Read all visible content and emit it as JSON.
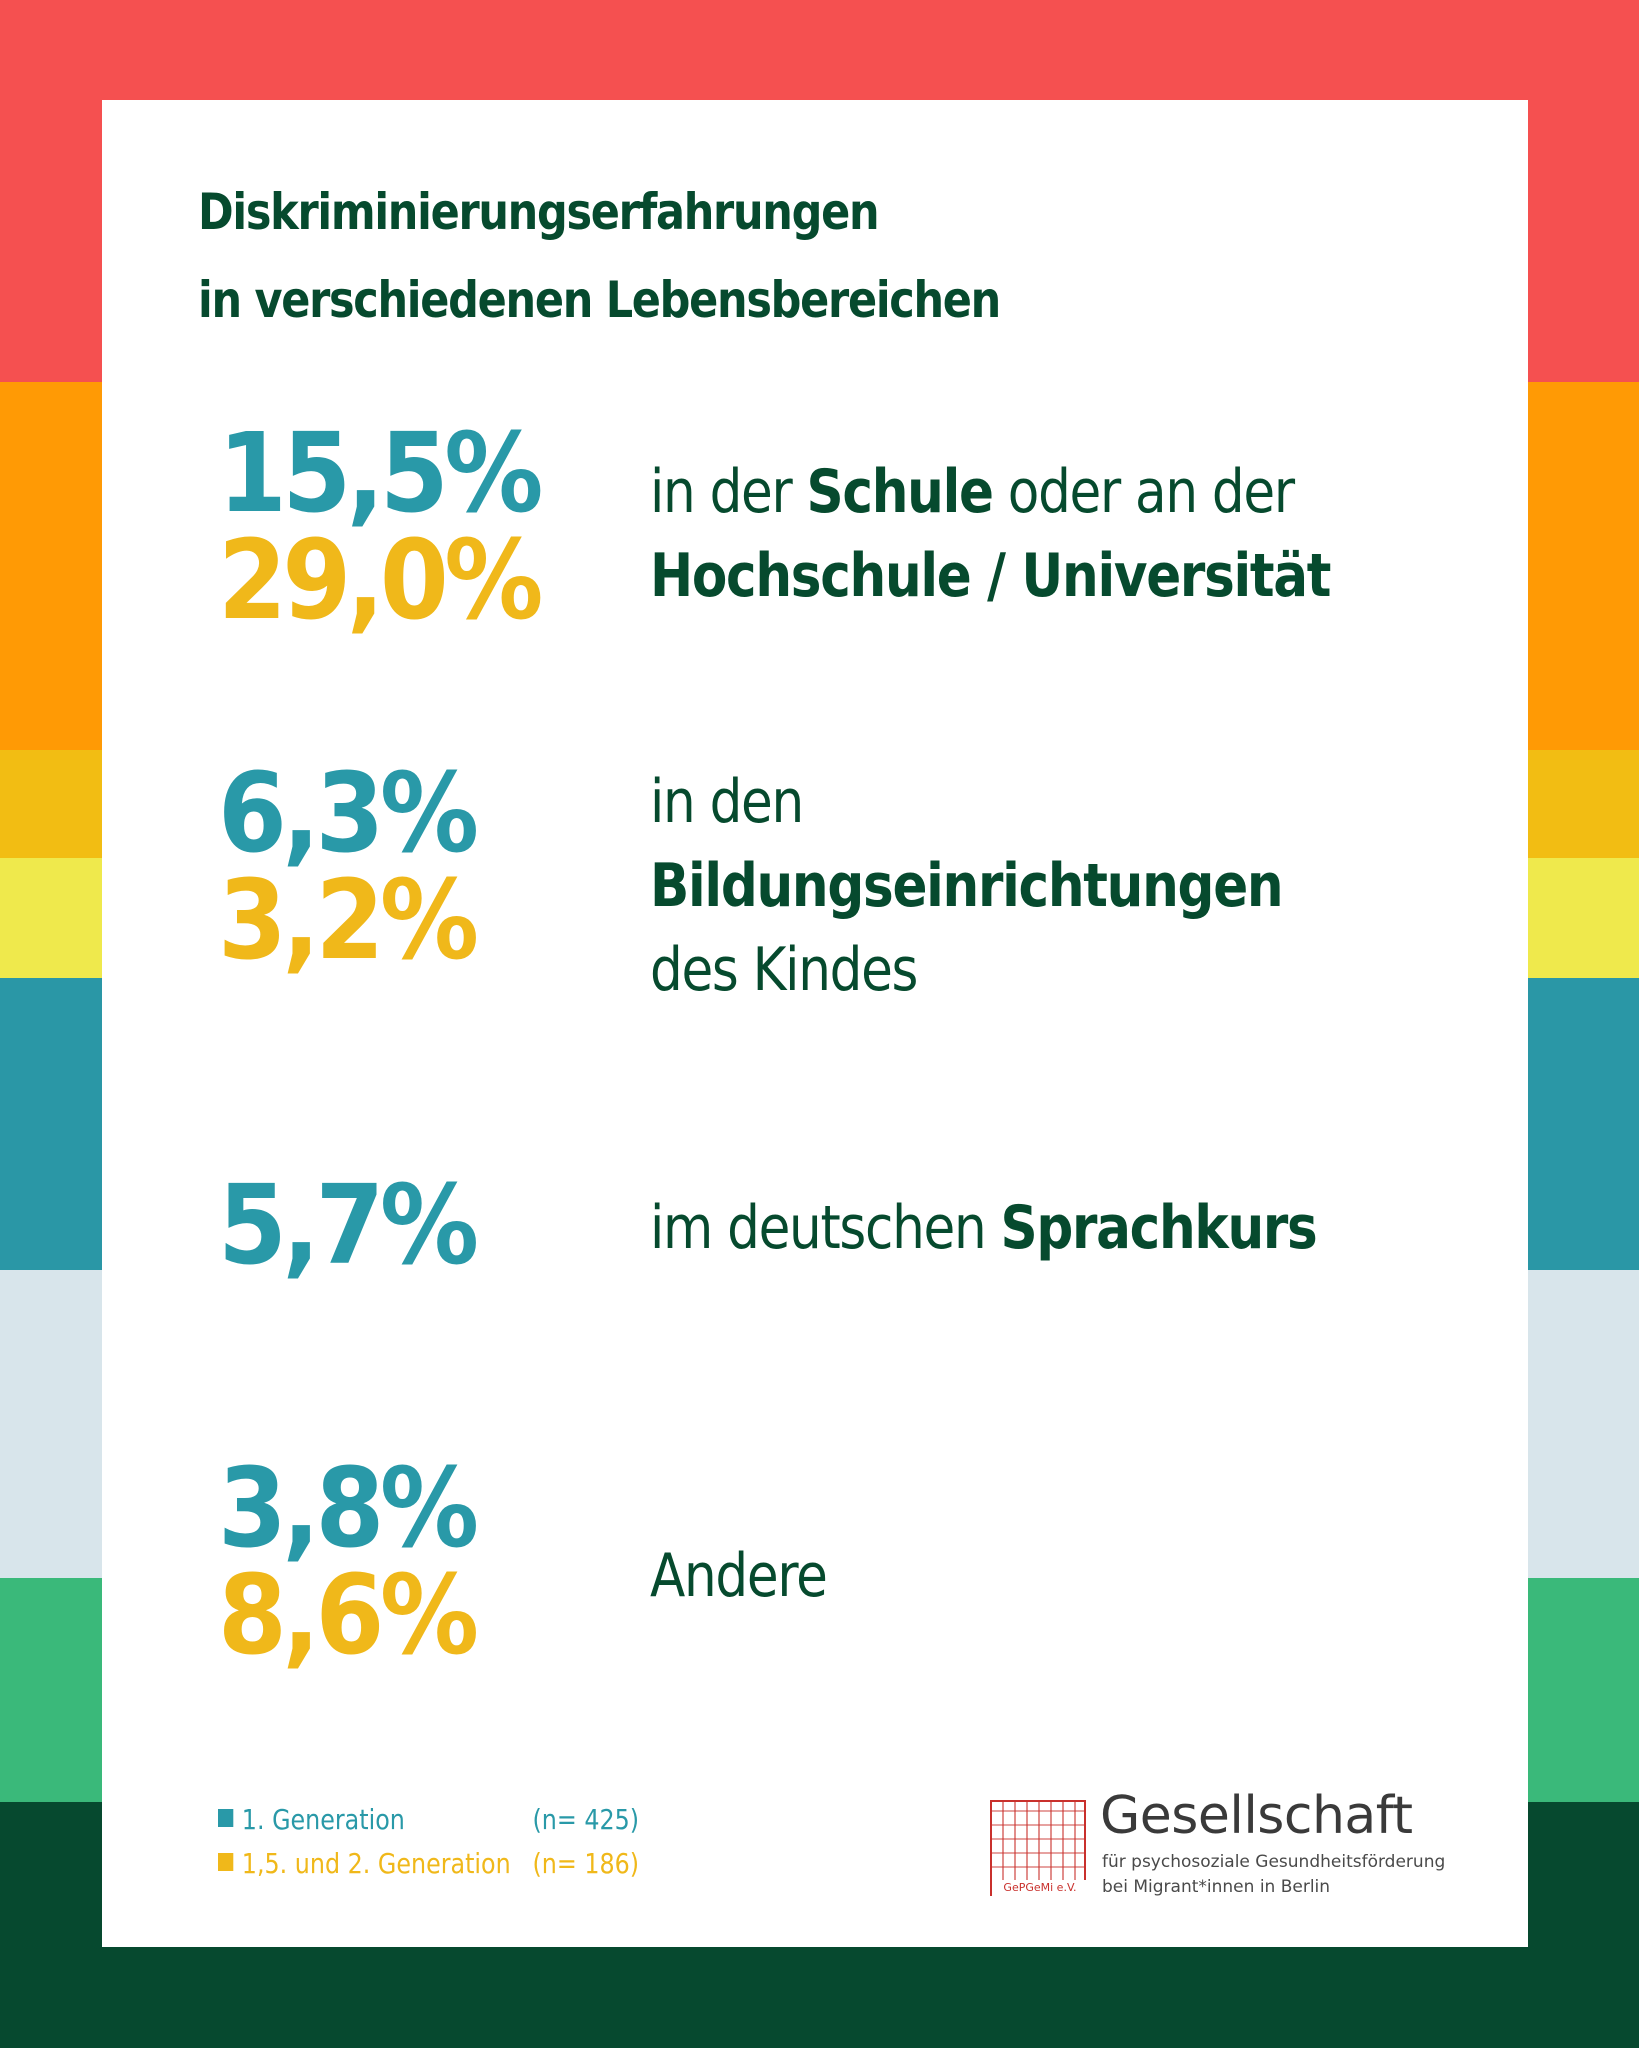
{
  "colors": {
    "bands": [
      "#f55050",
      "#ff9a05",
      "#f2bd13",
      "#efe94c",
      "#2a97a6",
      "#d8e5eb",
      "#3ab97a",
      "#06492f"
    ],
    "generation_1": "#2999a8",
    "generation_2": "#f0b81a",
    "text": "#064a2e"
  },
  "title": {
    "line1": "Diskriminierungserfahrungen",
    "line2": "in verschiedenen Lebensbereichen"
  },
  "items": [
    {
      "gen1_value": "15,5%",
      "gen2_value": "29,0%",
      "label": [
        [
          {
            "t": "in der ",
            "b": false
          },
          {
            "t": "Schule",
            "b": true
          },
          {
            "t": " oder an der",
            "b": false
          }
        ],
        [
          {
            "t": "Hochschule / Universität",
            "b": true
          }
        ]
      ]
    },
    {
      "gen1_value": "6,3%",
      "gen2_value": "3,2%",
      "label": [
        [
          {
            "t": "in den",
            "b": false
          }
        ],
        [
          {
            "t": "Bildungseinrichtungen",
            "b": true
          }
        ],
        [
          {
            "t": "des Kindes",
            "b": false
          }
        ]
      ]
    },
    {
      "gen1_value": "5,7%",
      "label": [
        [
          {
            "t": "im deutschen ",
            "b": false
          },
          {
            "t": "Sprachkurs",
            "b": true
          }
        ]
      ]
    },
    {
      "gen1_value": "3,8%",
      "gen2_value": "8,6%",
      "label": [
        [
          {
            "t": "Andere",
            "b": false
          }
        ]
      ]
    }
  ],
  "legend": {
    "gen1_label": "1.  Generation",
    "gen1_n": "(n= 425)",
    "gen2_label": "1,5. und 2.  Generation",
    "gen2_n": "(n= 186)"
  },
  "logo": {
    "seal_text": "GePGeMi e.V.",
    "name": "Gesellschaft",
    "sub_line1": "für psychosoziale Gesundheitsförderung",
    "sub_line2": "bei Migrant*innen in Berlin"
  }
}
